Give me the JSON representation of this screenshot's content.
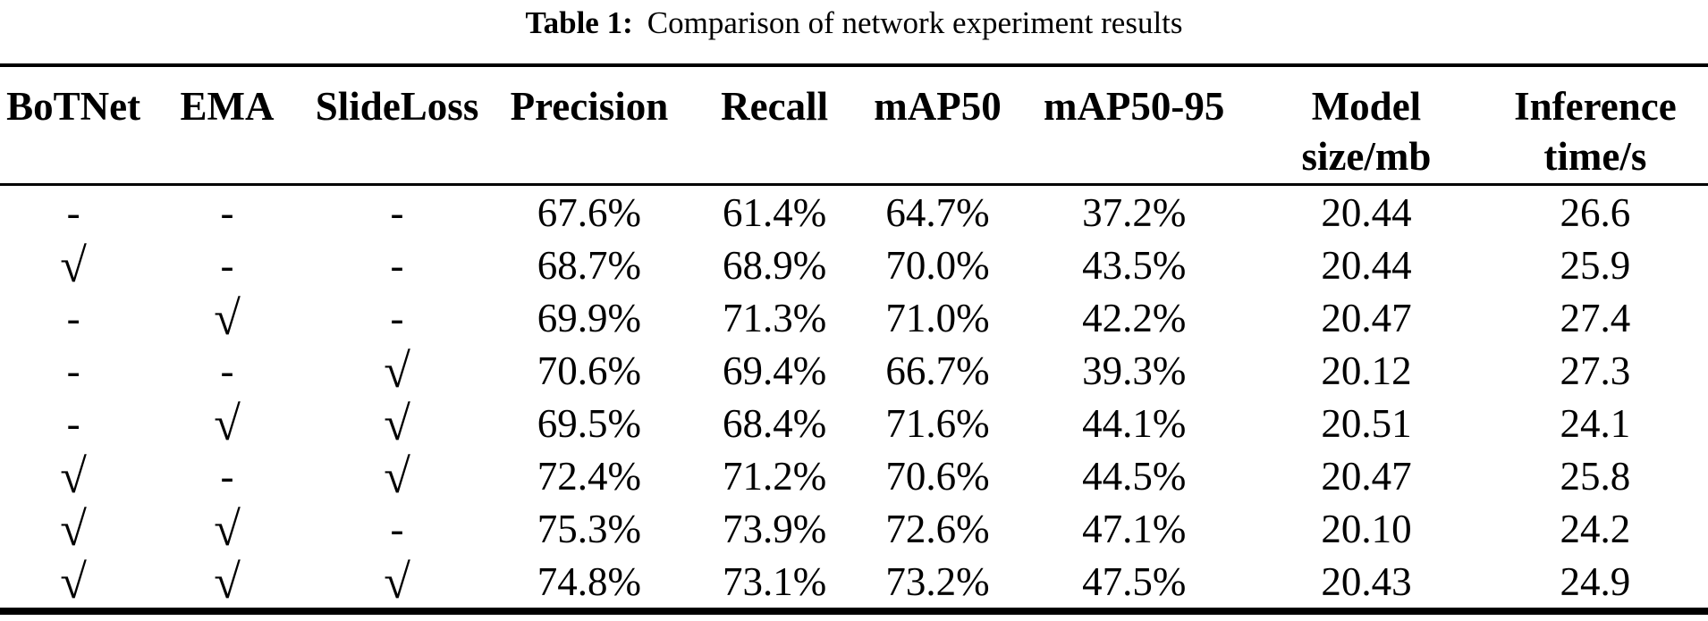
{
  "caption": {
    "label": "Table 1:",
    "text": "Comparison of network experiment results"
  },
  "colors": {
    "text": "#000000",
    "background": "#ffffff",
    "rule": "#000000"
  },
  "table": {
    "check_symbol": "√",
    "absent_symbol": "-",
    "columns": [
      {
        "id": "botnet",
        "label": "BoTNet"
      },
      {
        "id": "ema",
        "label": "EMA"
      },
      {
        "id": "slideloss",
        "label": "SlideLoss"
      },
      {
        "id": "precision",
        "label": "Precision"
      },
      {
        "id": "recall",
        "label": "Recall"
      },
      {
        "id": "map50",
        "label": "mAP50"
      },
      {
        "id": "map50_95",
        "label": "mAP50-95"
      },
      {
        "id": "model_size",
        "label": "Model\nsize/mb"
      },
      {
        "id": "inference_time",
        "label": "Inference\ntime/s"
      }
    ],
    "rows": [
      {
        "botnet": "-",
        "ema": "-",
        "slideloss": "-",
        "precision": "67.6%",
        "recall": "61.4%",
        "map50": "64.7%",
        "map50_95": "37.2%",
        "model_size": "20.44",
        "inference_time": "26.6"
      },
      {
        "botnet": "√",
        "ema": "-",
        "slideloss": "-",
        "precision": "68.7%",
        "recall": "68.9%",
        "map50": "70.0%",
        "map50_95": "43.5%",
        "model_size": "20.44",
        "inference_time": "25.9"
      },
      {
        "botnet": "-",
        "ema": "√",
        "slideloss": "-",
        "precision": "69.9%",
        "recall": "71.3%",
        "map50": "71.0%",
        "map50_95": "42.2%",
        "model_size": "20.47",
        "inference_time": "27.4"
      },
      {
        "botnet": "-",
        "ema": "-",
        "slideloss": "√",
        "precision": "70.6%",
        "recall": "69.4%",
        "map50": "66.7%",
        "map50_95": "39.3%",
        "model_size": "20.12",
        "inference_time": "27.3"
      },
      {
        "botnet": "-",
        "ema": "√",
        "slideloss": "√",
        "precision": "69.5%",
        "recall": "68.4%",
        "map50": "71.6%",
        "map50_95": "44.1%",
        "model_size": "20.51",
        "inference_time": "24.1"
      },
      {
        "botnet": "√",
        "ema": "-",
        "slideloss": "√",
        "precision": "72.4%",
        "recall": "71.2%",
        "map50": "70.6%",
        "map50_95": "44.5%",
        "model_size": "20.47",
        "inference_time": "25.8"
      },
      {
        "botnet": "√",
        "ema": "√",
        "slideloss": "-",
        "precision": "75.3%",
        "recall": "73.9%",
        "map50": "72.6%",
        "map50_95": "47.1%",
        "model_size": "20.10",
        "inference_time": "24.2"
      },
      {
        "botnet": "√",
        "ema": "√",
        "slideloss": "√",
        "precision": "74.8%",
        "recall": "73.1%",
        "map50": "73.2%",
        "map50_95": "47.5%",
        "model_size": "20.43",
        "inference_time": "24.9"
      }
    ]
  }
}
